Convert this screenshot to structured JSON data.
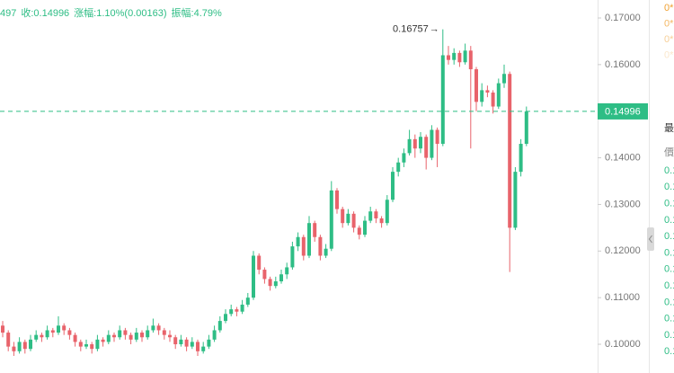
{
  "header": {
    "items": [
      "497",
      "收:0.14996",
      "涨幅:1.10%(0.00163)",
      "振幅:4.79%"
    ]
  },
  "chart_data": {
    "type": "candlestick",
    "up_color": "#2ebd85",
    "down_color": "#e8636b",
    "ylim": [
      0.0965,
      0.1735
    ],
    "yticks": [
      {
        "value": 0.17,
        "label": "0.17000"
      },
      {
        "value": 0.16,
        "label": "0.16000"
      },
      {
        "value": 0.15,
        "label": "0.15000"
      },
      {
        "value": 0.14,
        "label": "0.14000"
      },
      {
        "value": 0.13,
        "label": "0.13000"
      },
      {
        "value": 0.12,
        "label": "0.12000"
      },
      {
        "value": 0.11,
        "label": "0.11000"
      },
      {
        "value": 0.1,
        "label": "0.10000"
      }
    ],
    "last_price": 0.14996,
    "max_marker": "→",
    "candles": [
      [
        0.104,
        0.105,
        0.1015,
        0.1025
      ],
      [
        0.1025,
        0.103,
        0.0985,
        0.0995
      ],
      [
        0.0995,
        0.1005,
        0.0975,
        0.0985
      ],
      [
        0.0985,
        0.1015,
        0.098,
        0.1005
      ],
      [
        0.1005,
        0.101,
        0.098,
        0.099
      ],
      [
        0.099,
        0.102,
        0.0985,
        0.101
      ],
      [
        0.101,
        0.103,
        0.1005,
        0.102
      ],
      [
        0.102,
        0.1025,
        0.1005,
        0.1015
      ],
      [
        0.1015,
        0.104,
        0.101,
        0.103
      ],
      [
        0.103,
        0.1035,
        0.1015,
        0.1025
      ],
      [
        0.1025,
        0.106,
        0.102,
        0.104
      ],
      [
        0.104,
        0.1045,
        0.102,
        0.103
      ],
      [
        0.103,
        0.1035,
        0.101,
        0.102
      ],
      [
        0.102,
        0.1025,
        0.0995,
        0.1005
      ],
      [
        0.1005,
        0.101,
        0.0985,
        0.0995
      ],
      [
        0.0995,
        0.101,
        0.099,
        0.1
      ],
      [
        0.1,
        0.1005,
        0.098,
        0.099
      ],
      [
        0.099,
        0.102,
        0.0985,
        0.101
      ],
      [
        0.101,
        0.1015,
        0.0995,
        0.1005
      ],
      [
        0.1005,
        0.103,
        0.1,
        0.102
      ],
      [
        0.102,
        0.1025,
        0.1005,
        0.1015
      ],
      [
        0.1015,
        0.104,
        0.101,
        0.103
      ],
      [
        0.103,
        0.1035,
        0.101,
        0.102
      ],
      [
        0.102,
        0.1025,
        0.1,
        0.101
      ],
      [
        0.101,
        0.1035,
        0.1005,
        0.1025
      ],
      [
        0.1025,
        0.103,
        0.1005,
        0.1015
      ],
      [
        0.1015,
        0.104,
        0.101,
        0.103
      ],
      [
        0.103,
        0.1055,
        0.1025,
        0.104
      ],
      [
        0.104,
        0.1045,
        0.102,
        0.103
      ],
      [
        0.103,
        0.1035,
        0.101,
        0.102
      ],
      [
        0.102,
        0.103,
        0.1005,
        0.1015
      ],
      [
        0.1015,
        0.102,
        0.099,
        0.1
      ],
      [
        0.1,
        0.102,
        0.0995,
        0.101
      ],
      [
        0.101,
        0.1015,
        0.0985,
        0.0995
      ],
      [
        0.0995,
        0.1015,
        0.099,
        0.1005
      ],
      [
        0.1005,
        0.101,
        0.0975,
        0.0985
      ],
      [
        0.0985,
        0.1005,
        0.098,
        0.0995
      ],
      [
        0.0995,
        0.102,
        0.099,
        0.101
      ],
      [
        0.101,
        0.104,
        0.1005,
        0.103
      ],
      [
        0.103,
        0.106,
        0.1025,
        0.105
      ],
      [
        0.105,
        0.1075,
        0.1045,
        0.1065
      ],
      [
        0.1065,
        0.1085,
        0.106,
        0.1075
      ],
      [
        0.1075,
        0.108,
        0.106,
        0.107
      ],
      [
        0.107,
        0.1095,
        0.1065,
        0.1085
      ],
      [
        0.1085,
        0.111,
        0.108,
        0.11
      ],
      [
        0.11,
        0.12,
        0.1095,
        0.119
      ],
      [
        0.119,
        0.1195,
        0.115,
        0.116
      ],
      [
        0.116,
        0.1165,
        0.113,
        0.114
      ],
      [
        0.114,
        0.1145,
        0.1115,
        0.1125
      ],
      [
        0.1125,
        0.1145,
        0.112,
        0.1135
      ],
      [
        0.1135,
        0.116,
        0.113,
        0.115
      ],
      [
        0.115,
        0.1175,
        0.114,
        0.1165
      ],
      [
        0.1165,
        0.122,
        0.116,
        0.121
      ],
      [
        0.121,
        0.124,
        0.12,
        0.123
      ],
      [
        0.123,
        0.1235,
        0.118,
        0.119
      ],
      [
        0.119,
        0.1275,
        0.1185,
        0.126
      ],
      [
        0.126,
        0.1265,
        0.122,
        0.123
      ],
      [
        0.123,
        0.1235,
        0.118,
        0.119
      ],
      [
        0.119,
        0.1215,
        0.1185,
        0.1205
      ],
      [
        0.1205,
        0.135,
        0.12,
        0.133
      ],
      [
        0.133,
        0.1335,
        0.128,
        0.129
      ],
      [
        0.129,
        0.1295,
        0.125,
        0.126
      ],
      [
        0.126,
        0.129,
        0.1255,
        0.128
      ],
      [
        0.128,
        0.1285,
        0.124,
        0.125
      ],
      [
        0.125,
        0.1255,
        0.1225,
        0.1235
      ],
      [
        0.1235,
        0.1275,
        0.123,
        0.1265
      ],
      [
        0.1265,
        0.1295,
        0.126,
        0.1285
      ],
      [
        0.1285,
        0.129,
        0.126,
        0.127
      ],
      [
        0.127,
        0.1275,
        0.125,
        0.126
      ],
      [
        0.126,
        0.132,
        0.1255,
        0.131
      ],
      [
        0.131,
        0.138,
        0.1305,
        0.137
      ],
      [
        0.137,
        0.14,
        0.136,
        0.139
      ],
      [
        0.139,
        0.142,
        0.138,
        0.141
      ],
      [
        0.141,
        0.146,
        0.1405,
        0.144
      ],
      [
        0.144,
        0.145,
        0.14,
        0.142
      ],
      [
        0.142,
        0.1455,
        0.141,
        0.1445
      ],
      [
        0.1445,
        0.145,
        0.1375,
        0.14
      ],
      [
        0.14,
        0.147,
        0.1395,
        0.146
      ],
      [
        0.146,
        0.1465,
        0.138,
        0.143
      ],
      [
        0.143,
        0.16757,
        0.1425,
        0.162
      ],
      [
        0.162,
        0.164,
        0.16,
        0.161
      ],
      [
        0.161,
        0.1635,
        0.16,
        0.1625
      ],
      [
        0.1625,
        0.163,
        0.1595,
        0.1605
      ],
      [
        0.1605,
        0.1645,
        0.16,
        0.163
      ],
      [
        0.163,
        0.164,
        0.142,
        0.159
      ],
      [
        0.159,
        0.1595,
        0.15,
        0.152
      ],
      [
        0.152,
        0.156,
        0.151,
        0.1545
      ],
      [
        0.1545,
        0.1555,
        0.153,
        0.154
      ],
      [
        0.154,
        0.1545,
        0.1495,
        0.151
      ],
      [
        0.151,
        0.157,
        0.1505,
        0.156
      ],
      [
        0.156,
        0.16,
        0.155,
        0.158
      ],
      [
        0.158,
        0.1585,
        0.1155,
        0.125
      ],
      [
        0.125,
        0.138,
        0.1245,
        0.137
      ],
      [
        0.137,
        0.144,
        0.136,
        0.143
      ],
      [
        0.143,
        0.151,
        0.1425,
        0.14996
      ]
    ]
  },
  "side_panel": {
    "top_items": [
      "0*",
      "0*",
      "0*",
      "0*"
    ],
    "heading": "最",
    "column": "價",
    "rows": [
      "0.1",
      "0.1",
      "0.1",
      "0.1",
      "0.1",
      "0.1",
      "0.1",
      "0.1",
      "0.1",
      "0.1",
      "0.1",
      "0.1"
    ]
  }
}
